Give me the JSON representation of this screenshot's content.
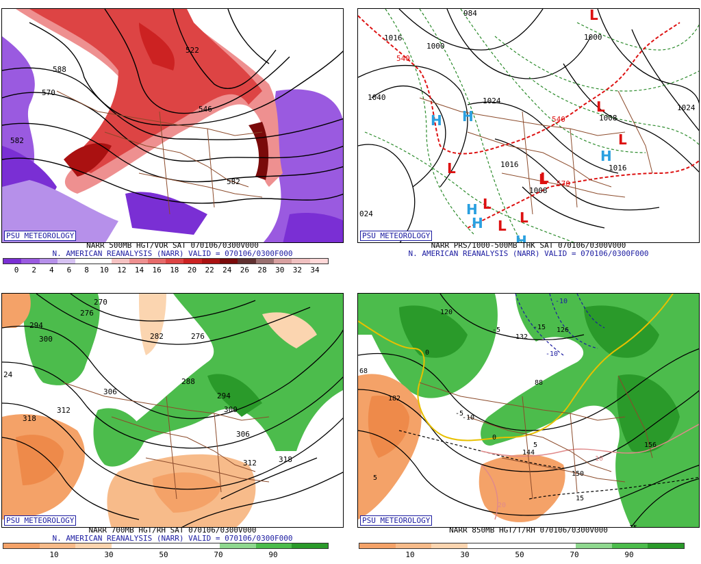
{
  "panels": [
    {
      "id": "p0",
      "badge": "PSU METEOROLOGY",
      "title": "NARR 500MB HGT/VOR SAT 070106/0300V000",
      "subtitle": "N. AMERICAN REANALYSIS (NARR) VALID = 070106/0300F000",
      "colorbar": {
        "colors": [
          "#7a2fd4",
          "#9a5ae0",
          "#b690ea",
          "#d6c2f2",
          "#ffffff",
          "#ffffff",
          "#f5c2c2",
          "#ee9090",
          "#e66a6a",
          "#dd4444",
          "#cc2222",
          "#aa1111",
          "#7a0a0a",
          "#603030",
          "#9a7070",
          "#d8a0a0",
          "#f0c0c0",
          "#ffd8d8"
        ],
        "ticks": [
          "0",
          "2",
          "4",
          "6",
          "8",
          "10",
          "12",
          "14",
          "16",
          "18",
          "20",
          "22",
          "24",
          "26",
          "28",
          "30",
          "32",
          "34"
        ]
      },
      "labels": [
        {
          "text": "522"
        },
        {
          "text": "570"
        },
        {
          "text": "582"
        },
        {
          "text": "546"
        },
        {
          "text": "588"
        },
        {
          "text": "582"
        }
      ]
    },
    {
      "id": "p1",
      "badge": "PSU METEOROLOGY",
      "title": "NARR PRS/1000-500MB THK SAT 070106/0300V000",
      "subtitle": "N. AMERICAN REANALYSIS (NARR) VALID = 070106/0300F000",
      "colorbar": null,
      "labels": [
        {
          "text": "984"
        },
        {
          "text": "1016"
        },
        {
          "text": "1000"
        },
        {
          "text": "540"
        },
        {
          "text": "1040"
        },
        {
          "text": "1024"
        },
        {
          "text": "1000"
        },
        {
          "text": "1008"
        },
        {
          "text": "1024"
        },
        {
          "text": "540"
        },
        {
          "text": "1016"
        },
        {
          "text": "1016"
        },
        {
          "text": "1008"
        },
        {
          "text": "570"
        },
        {
          "text": "024"
        }
      ],
      "highs": [
        "H",
        "H",
        "H",
        "H",
        "H",
        "H"
      ],
      "lows": [
        "L",
        "L",
        "L",
        "L",
        "L",
        "L",
        "L",
        "L",
        "L"
      ]
    },
    {
      "id": "p2",
      "badge": "PSU METEOROLOGY",
      "title": "NARR 700MB HGT/RH SAT 070106/0300V000",
      "subtitle": "N. AMERICAN REANALYSIS (NARR) VALID = 070106/0300F000",
      "colorbar": {
        "colors": [
          "#f4a268",
          "#f7bb8a",
          "#fbd5b0",
          "#ffffff",
          "#ffffff",
          "#ffffff",
          "#8fd88f",
          "#4cbc4c",
          "#2a9a2a"
        ],
        "ticks": [
          "10",
          "30",
          "50",
          "70",
          "90"
        ]
      },
      "labels": [
        {
          "text": "270"
        },
        {
          "text": "276"
        },
        {
          "text": "300"
        },
        {
          "text": "282"
        },
        {
          "text": "276"
        },
        {
          "text": "288"
        },
        {
          "text": "306"
        },
        {
          "text": "294"
        },
        {
          "text": "300"
        },
        {
          "text": "318"
        },
        {
          "text": "312"
        },
        {
          "text": "306"
        },
        {
          "text": "312"
        },
        {
          "text": "318"
        },
        {
          "text": "24"
        },
        {
          "text": "294"
        }
      ]
    },
    {
      "id": "p3",
      "badge": "PSU METEOROLOGY",
      "title": "NARR 850MB HGT/T/RH 070106/0300V000",
      "subtitle": "",
      "colorbar": {
        "colors": [
          "#f4a268",
          "#f7bb8a",
          "#fbd5b0",
          "#ffffff",
          "#ffffff",
          "#ffffff",
          "#8fd88f",
          "#4cbc4c",
          "#2a9a2a"
        ],
        "ticks": [
          "10",
          "30",
          "50",
          "70",
          "90"
        ]
      },
      "labels": [
        {
          "text": "-10"
        },
        {
          "text": "120"
        },
        {
          "text": "-5"
        },
        {
          "text": "-15"
        },
        {
          "text": "132"
        },
        {
          "text": "126"
        },
        {
          "text": "-10"
        },
        {
          "text": "0"
        },
        {
          "text": "88"
        },
        {
          "text": "182"
        },
        {
          "text": "-5"
        },
        {
          "text": "-10"
        },
        {
          "text": "0"
        },
        {
          "text": "5"
        },
        {
          "text": "144"
        },
        {
          "text": "10"
        },
        {
          "text": "156"
        },
        {
          "text": "5"
        },
        {
          "text": "150"
        },
        {
          "text": "15"
        },
        {
          "text": "20"
        },
        {
          "text": "15"
        },
        {
          "text": "68"
        }
      ]
    }
  ]
}
